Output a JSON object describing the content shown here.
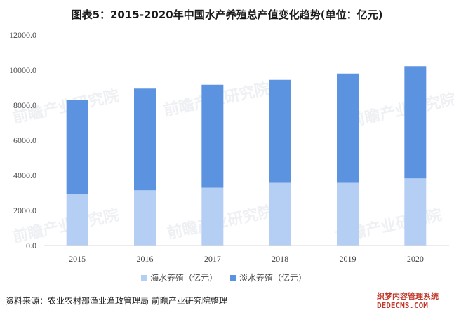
{
  "title": "图表5：2015-2020年中国水产养殖总产值变化趋势(单位：亿元)",
  "source": "资料来源：农业农村部渔业渔政管理局 前瞻产业研究院整理",
  "watermark": {
    "brand": "前瞻产业研究院",
    "corner_top": "织梦内容管理系统",
    "corner_bottom": "DEDECMS.COM"
  },
  "chart_data": {
    "type": "bar",
    "stacked": true,
    "categories": [
      "2015",
      "2016",
      "2017",
      "2018",
      "2019",
      "2020"
    ],
    "series": [
      {
        "name": "海水养殖（亿元）",
        "color": "#b4cff3",
        "values": [
          2950,
          3150,
          3300,
          3580,
          3580,
          3830
        ]
      },
      {
        "name": "淡水养殖（亿元）",
        "color": "#5b93e1",
        "values": [
          5330,
          5800,
          5870,
          5870,
          6230,
          6400
        ]
      }
    ],
    "ylim": [
      0,
      12000
    ],
    "yticks": [
      "0.0",
      "2000.0",
      "4000.0",
      "6000.0",
      "8000.0",
      "10000.0",
      "12000.0"
    ],
    "grid": false,
    "legend": "bottom"
  }
}
